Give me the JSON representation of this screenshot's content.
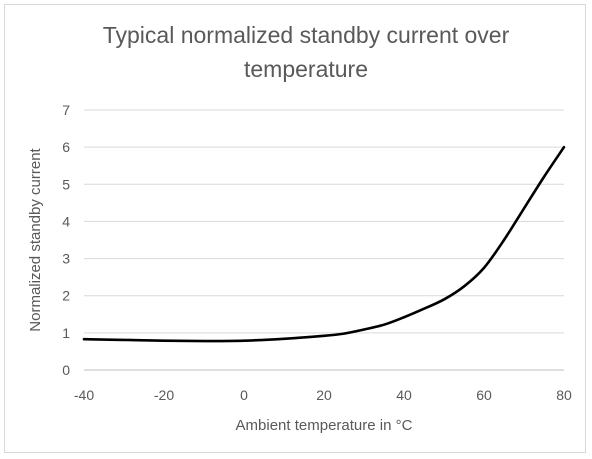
{
  "chart_data": {
    "type": "line",
    "title": "Typical normalized standby current over temperature",
    "xlabel": "Ambient temperature in °C",
    "ylabel": "Normalized standby current",
    "xlim": [
      -40,
      80
    ],
    "ylim": [
      0,
      7
    ],
    "xticks": [
      -40,
      -20,
      0,
      20,
      40,
      60,
      80
    ],
    "yticks": [
      0,
      1,
      2,
      3,
      4,
      5,
      6,
      7
    ],
    "grid": "horizontal",
    "legend": "none",
    "colors": {
      "line": "#000000",
      "grid": "#d9d9d9",
      "text": "#595959"
    },
    "series": [
      {
        "x": [
          -40,
          -30,
          -20,
          -10,
          0,
          10,
          20,
          25,
          30,
          35,
          40,
          45,
          50,
          55,
          60,
          65,
          70,
          75,
          80
        ],
        "y": [
          0.83,
          0.81,
          0.79,
          0.78,
          0.79,
          0.84,
          0.92,
          0.98,
          1.09,
          1.22,
          1.42,
          1.65,
          1.9,
          2.25,
          2.75,
          3.5,
          4.35,
          5.2,
          6.0
        ]
      }
    ]
  }
}
